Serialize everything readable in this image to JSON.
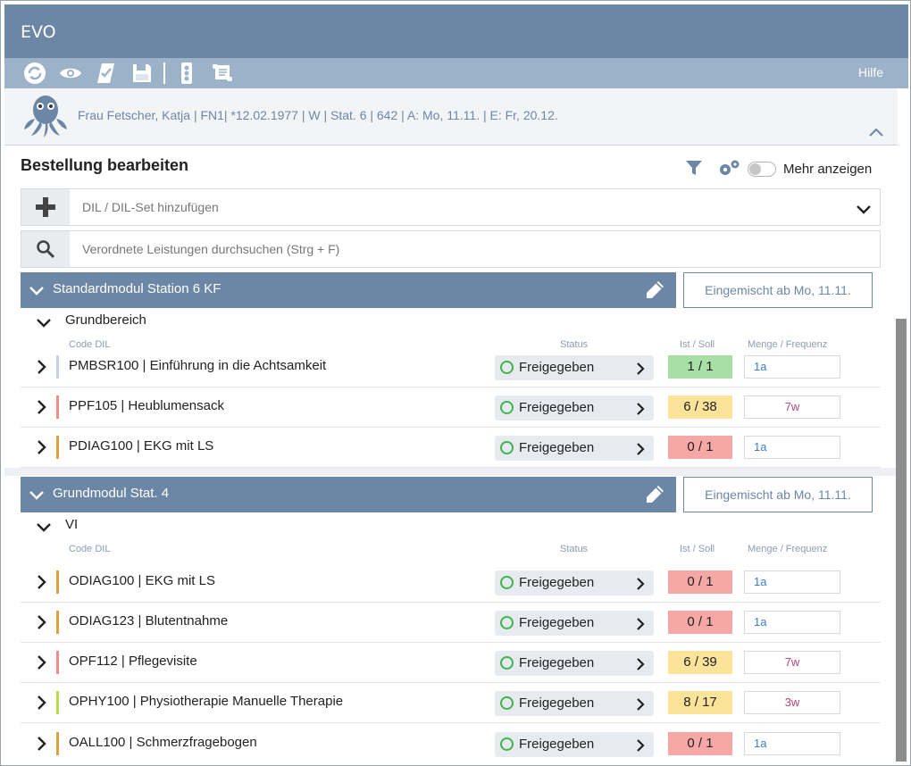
{
  "app": {
    "title": "EVO"
  },
  "toolbar": {
    "hilfe": "Hilfe"
  },
  "patient": {
    "info": "Frau Fetscher, Katja | FN1| *12.02.1977 | W | Stat. 6 | 642 | A: Mo, 11.11. | E: Fr, 20.12."
  },
  "page": {
    "title": "Bestellung bearbeiten",
    "toggle_label": "Mehr anzeigen"
  },
  "add": {
    "placeholder": "DIL / DIL-Set hinzufügen"
  },
  "search": {
    "placeholder": "Verordnete Leistungen durchsuchen (Strg + F)"
  },
  "columns": {
    "code": "Code DIL",
    "status": "Status",
    "ist": "Ist / Soll",
    "menge": "Menge / Frequenz"
  },
  "groups": [
    {
      "title": "Standardmodul Station 6 KF",
      "mixed": "Eingemischt ab Mo, 11.11.",
      "subgroup": "Grundbereich",
      "rows": [
        {
          "name": "PMBSR100 | Einführung in die Achtsamkeit",
          "status": "Freigegeben",
          "ist": "1 / 1",
          "menge": "1a"
        },
        {
          "name": "PPF105 | Heublumensack",
          "status": "Freigegeben",
          "ist": "6 / 38",
          "menge": "7w"
        },
        {
          "name": "PDIAG100 | EKG mit LS",
          "status": "Freigegeben",
          "ist": "0 / 1",
          "menge": "1a"
        }
      ]
    },
    {
      "title": "Grundmodul Stat. 4",
      "mixed": "Eingemischt ab Mo, 11.11.",
      "subgroup": "VI",
      "rows": [
        {
          "name": "ODIAG100 | EKG mit LS",
          "status": "Freigegeben",
          "ist": "0 / 1",
          "menge": "1a"
        },
        {
          "name": "ODIAG123 | Blutentnahme",
          "status": "Freigegeben",
          "ist": "0 / 1",
          "menge": "1a"
        },
        {
          "name": "OPF112 | Pflegevisite",
          "status": "Freigegeben",
          "ist": "6 / 39",
          "menge": "7w"
        },
        {
          "name": "OPHY100 | Physiotherapie Manuelle Therapie",
          "status": "Freigegeben",
          "ist": "8 / 17",
          "menge": "3w"
        },
        {
          "name": "OALL100 | Schmerzfragebogen",
          "status": "Freigegeben",
          "ist": "0 / 1",
          "menge": "1a"
        }
      ]
    }
  ],
  "colors": {
    "header": "#6c87a6",
    "toolbar": "#9bb2c8",
    "ok_green": "#a7dfa4",
    "warn_yellow": "#fbe49a",
    "alert_red": "#f6a8a7"
  }
}
